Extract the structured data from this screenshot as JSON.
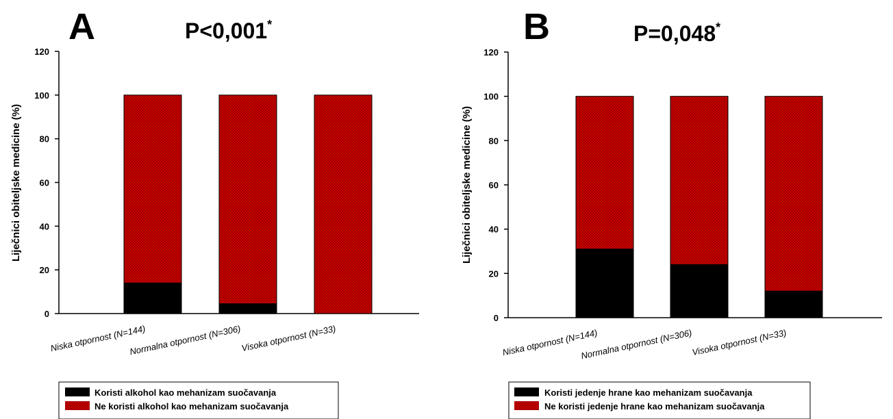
{
  "chart_data": [
    {
      "type": "bar",
      "stacked": true,
      "panel": "A",
      "title": "P<0,001",
      "title_mark": "*",
      "ylabel": "Liječnici obiteljske medicine (%)",
      "ylim": [
        0,
        120
      ],
      "yticks": [
        "0",
        "20",
        "40",
        "60",
        "80",
        "100",
        "120"
      ],
      "categories": [
        "Niska otpornost (N=144)",
        "Normalna otpornost (N=306)",
        "Visoka otpornost (N=33)"
      ],
      "series": [
        {
          "name": "Koristi alkohol kao mehanizam suočavanja",
          "color": "#000000",
          "values": [
            14,
            4.5,
            0
          ]
        },
        {
          "name": "Ne koristi alkohol kao mehanizam suočavanja",
          "color": "#c00000",
          "values": [
            86,
            95.5,
            100
          ]
        }
      ],
      "legend_position": "bottom"
    },
    {
      "type": "bar",
      "stacked": true,
      "panel": "B",
      "title": "P=0,048",
      "title_mark": "*",
      "ylabel": "Liječnici obiteljske medicine (%)",
      "ylim": [
        0,
        120
      ],
      "yticks": [
        "0",
        "20",
        "40",
        "60",
        "80",
        "100",
        "120"
      ],
      "categories": [
        "Niska otpornost (N=144)",
        "Normalna otpornost (N=306)",
        "Visoka otpornost (N=33)"
      ],
      "series": [
        {
          "name": "Koristi jedenje hrane kao mehanizam suočavanja",
          "color": "#000000",
          "values": [
            31,
            24,
            12
          ]
        },
        {
          "name": "Ne koristi jedenje hrane kao mehanizam suočavanja",
          "color": "#c00000",
          "values": [
            69,
            76,
            88
          ]
        }
      ],
      "legend_position": "bottom"
    }
  ]
}
